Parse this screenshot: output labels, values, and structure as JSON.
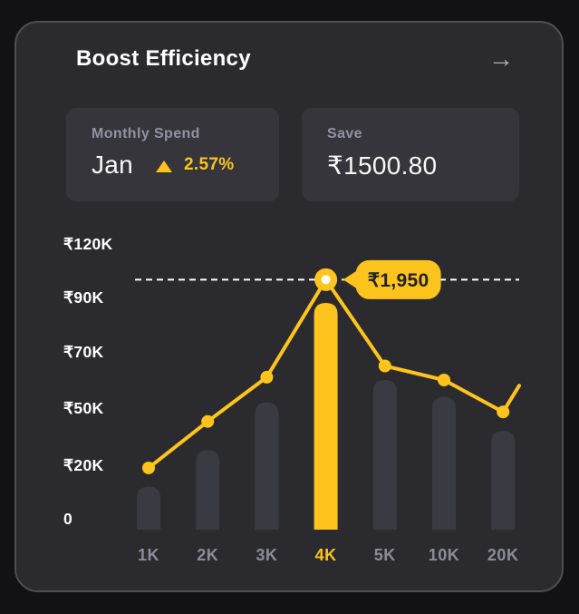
{
  "header": {
    "title": "Boost Efficiency",
    "action_icon": "arrow-right",
    "action_glyph": "→"
  },
  "stats": [
    {
      "label": "Monthly Spend",
      "value": "Jan",
      "trend": {
        "icon": "triangle-up",
        "direction": "up",
        "value": "2.57%"
      }
    },
    {
      "label": "Save",
      "value": "₹1500.80"
    }
  ],
  "chart_data": {
    "type": "bar",
    "subtype": "bar+line combo, values in ₹ thousands estimated from axis gridlines",
    "categories": [
      "1K",
      "2K",
      "3K",
      "4K",
      "5K",
      "10K",
      "20K"
    ],
    "highlight_category": "4K",
    "series": [
      {
        "name": "bars",
        "type": "bar",
        "values_k": [
          12,
          28,
          52,
          88,
          60,
          54,
          38
        ]
      },
      {
        "name": "line",
        "type": "line",
        "values_k": [
          19,
          43,
          61,
          100,
          65,
          60,
          48
        ],
        "tail_value_k": 58
      }
    ],
    "y_ticks": [
      {
        "label": "0",
        "value": 0
      },
      {
        "label": "₹20K",
        "value": 20
      },
      {
        "label": "₹50K",
        "value": 50
      },
      {
        "label": "₹70K",
        "value": 70
      },
      {
        "label": "₹90K",
        "value": 90
      },
      {
        "label": "₹120K",
        "value": 120
      }
    ],
    "ylim": [
      0,
      120
    ],
    "grid": "single dashed reference line at line-series peak",
    "legend": "none",
    "tooltip": {
      "text": "₹1,950",
      "attached_to": "4K"
    },
    "colors": {
      "accent": "#fcc41c",
      "bar": "#3a3a42",
      "axis_text": "#8b8c98",
      "y_label": "#ffffff",
      "dashed_line": "#ffffff",
      "tooltip_bg": "#fcc41c",
      "tooltip_text": "#222226",
      "peak_center": "#ffffff"
    }
  }
}
